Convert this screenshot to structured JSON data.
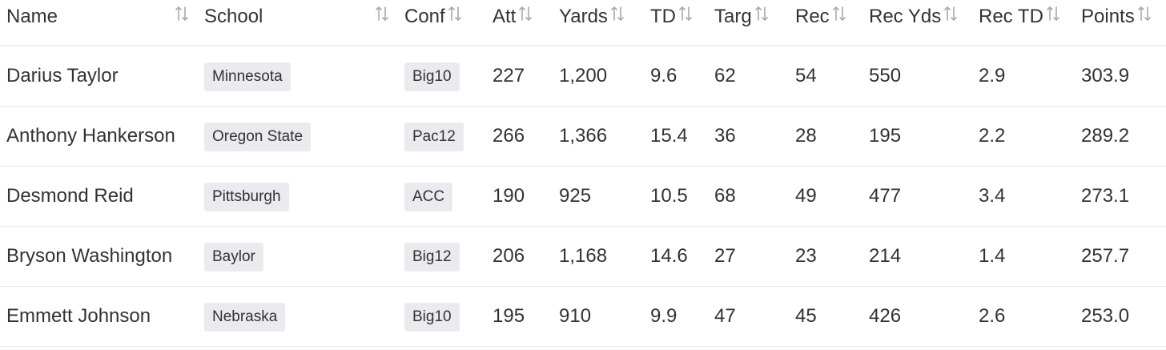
{
  "table": {
    "columns": [
      "Name",
      "School",
      "Conf",
      "Att",
      "Yards",
      "TD",
      "Targ",
      "Rec",
      "Rec Yds",
      "Rec TD",
      "Points"
    ],
    "rows": [
      [
        "Darius Taylor",
        "Minnesota",
        "Big10",
        "227",
        "1,200",
        "9.6",
        "62",
        "54",
        "550",
        "2.9",
        "303.9"
      ],
      [
        "Anthony Hankerson",
        "Oregon State",
        "Pac12",
        "266",
        "1,366",
        "15.4",
        "36",
        "28",
        "195",
        "2.2",
        "289.2"
      ],
      [
        "Desmond Reid",
        "Pittsburgh",
        "ACC",
        "190",
        "925",
        "10.5",
        "68",
        "49",
        "477",
        "3.4",
        "273.1"
      ],
      [
        "Bryson Washington",
        "Baylor",
        "Big12",
        "206",
        "1,168",
        "14.6",
        "27",
        "23",
        "214",
        "1.4",
        "257.7"
      ],
      [
        "Emmett Johnson",
        "Nebraska",
        "Big10",
        "195",
        "910",
        "9.9",
        "47",
        "45",
        "426",
        "2.6",
        "253.0"
      ]
    ]
  }
}
